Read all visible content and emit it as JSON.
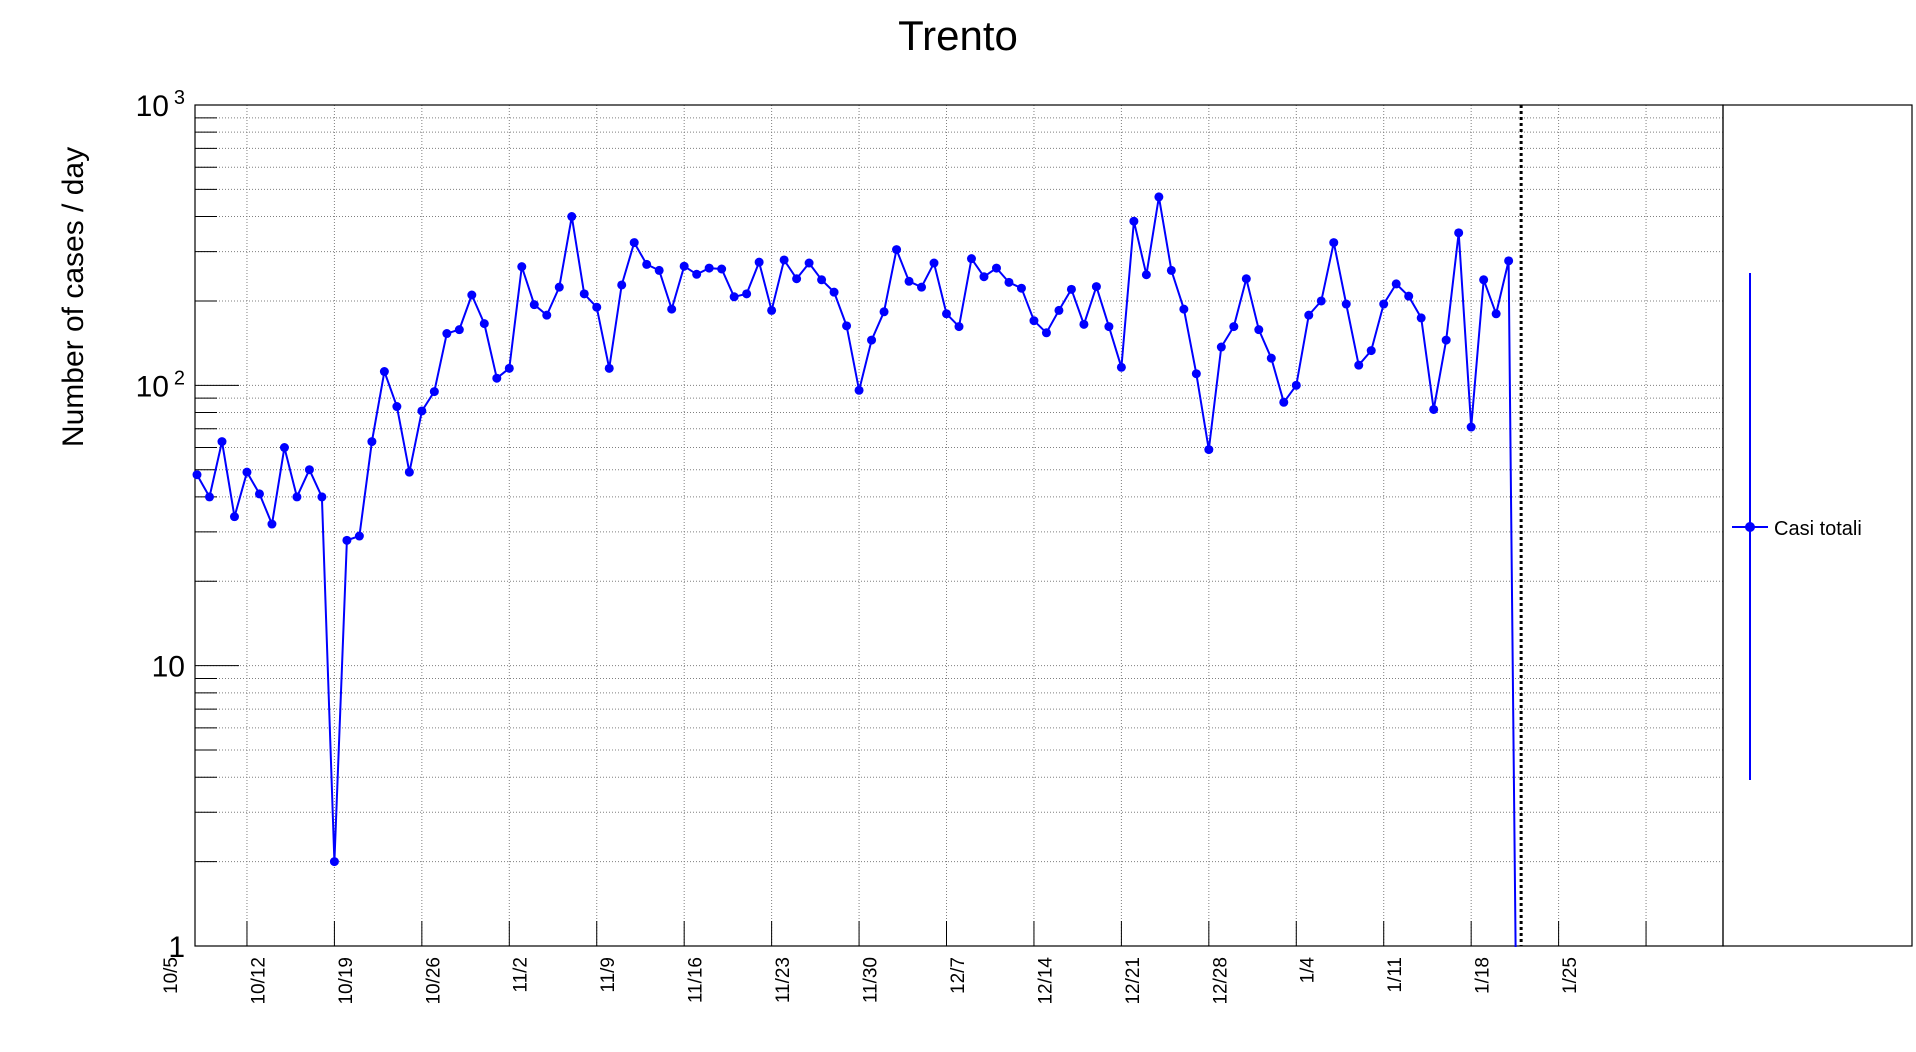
{
  "chart_data": {
    "type": "line",
    "title": "Trento",
    "xlabel": "",
    "ylabel": "Number of cases / day",
    "yscale": "log",
    "ylim": [
      1,
      1000
    ],
    "yticks": [
      {
        "value": 1,
        "label": "1",
        "exp": ""
      },
      {
        "value": 10,
        "label": "10",
        "exp": ""
      },
      {
        "value": 100,
        "label": "10",
        "exp": "2"
      },
      {
        "value": 1000,
        "label": "10",
        "exp": "3"
      }
    ],
    "xlim": [
      "2020-10-01",
      "2021-01-31"
    ],
    "xticks": [
      {
        "date": "2020-10-05",
        "label": "10/5"
      },
      {
        "date": "2020-10-12",
        "label": "10/12"
      },
      {
        "date": "2020-10-19",
        "label": "10/19"
      },
      {
        "date": "2020-10-26",
        "label": "10/26"
      },
      {
        "date": "2020-11-02",
        "label": "11/2"
      },
      {
        "date": "2020-11-09",
        "label": "11/9"
      },
      {
        "date": "2020-11-16",
        "label": "11/16"
      },
      {
        "date": "2020-11-23",
        "label": "11/23"
      },
      {
        "date": "2020-11-30",
        "label": "11/30"
      },
      {
        "date": "2020-12-07",
        "label": "12/7"
      },
      {
        "date": "2020-12-14",
        "label": "12/14"
      },
      {
        "date": "2020-12-21",
        "label": "12/21"
      },
      {
        "date": "2020-12-28",
        "label": "12/28"
      },
      {
        "date": "2021-01-04",
        "label": "1/4"
      },
      {
        "date": "2021-01-11",
        "label": "1/11"
      },
      {
        "date": "2021-01-18",
        "label": "1/18"
      },
      {
        "date": "2021-01-25",
        "label": "1/25"
      }
    ],
    "grid": true,
    "legend_position": "right",
    "vline_date": "2021-01-15",
    "series": [
      {
        "name": "Casi totali",
        "color": "#0000ff",
        "x": [
          "2020-10-01",
          "2020-10-02",
          "2020-10-03",
          "2020-10-04",
          "2020-10-05",
          "2020-10-06",
          "2020-10-07",
          "2020-10-08",
          "2020-10-09",
          "2020-10-10",
          "2020-10-11",
          "2020-10-12",
          "2020-10-13",
          "2020-10-14",
          "2020-10-15",
          "2020-10-16",
          "2020-10-17",
          "2020-10-18",
          "2020-10-19",
          "2020-10-20",
          "2020-10-21",
          "2020-10-22",
          "2020-10-23",
          "2020-10-24",
          "2020-10-25",
          "2020-10-26",
          "2020-10-27",
          "2020-10-28",
          "2020-10-29",
          "2020-10-30",
          "2020-10-31",
          "2020-11-01",
          "2020-11-02",
          "2020-11-03",
          "2020-11-04",
          "2020-11-05",
          "2020-11-06",
          "2020-11-07",
          "2020-11-08",
          "2020-11-09",
          "2020-11-10",
          "2020-11-11",
          "2020-11-12",
          "2020-11-13",
          "2020-11-14",
          "2020-11-15",
          "2020-11-16",
          "2020-11-17",
          "2020-11-18",
          "2020-11-19",
          "2020-11-20",
          "2020-11-21",
          "2020-11-22",
          "2020-11-23",
          "2020-11-24",
          "2020-11-25",
          "2020-11-26",
          "2020-11-27",
          "2020-11-28",
          "2020-11-29",
          "2020-11-30",
          "2020-12-01",
          "2020-12-02",
          "2020-12-03",
          "2020-12-04",
          "2020-12-05",
          "2020-12-06",
          "2020-12-07",
          "2020-12-08",
          "2020-12-09",
          "2020-12-10",
          "2020-12-11",
          "2020-12-12",
          "2020-12-13",
          "2020-12-14",
          "2020-12-15",
          "2020-12-16",
          "2020-12-17",
          "2020-12-18",
          "2020-12-19",
          "2020-12-20",
          "2020-12-21",
          "2020-12-22",
          "2020-12-23",
          "2020-12-24",
          "2020-12-25",
          "2020-12-26",
          "2020-12-27",
          "2020-12-28",
          "2020-12-29",
          "2020-12-30",
          "2020-12-31",
          "2021-01-01",
          "2021-01-02",
          "2021-01-03",
          "2021-01-04",
          "2021-01-05",
          "2021-01-06",
          "2021-01-07",
          "2021-01-08",
          "2021-01-09",
          "2021-01-10",
          "2021-01-11",
          "2021-01-12",
          "2021-01-13",
          "2021-01-14"
        ],
        "y": [
          48,
          40,
          63,
          34,
          49,
          41,
          32,
          60,
          40,
          50,
          40,
          2,
          28,
          29,
          63,
          112,
          84,
          49,
          81,
          95,
          153,
          158,
          210,
          166,
          106,
          115,
          265,
          194,
          178,
          224,
          400,
          212,
          190,
          115,
          228,
          323,
          270,
          257,
          187,
          266,
          249,
          262,
          260,
          207,
          212,
          275,
          185,
          280,
          240,
          273,
          238,
          215,
          163,
          96,
          145,
          183,
          305,
          235,
          224,
          273,
          180,
          162,
          283,
          244,
          262,
          233,
          222,
          170,
          154,
          185,
          220,
          165,
          225,
          162,
          116,
          385,
          248,
          470,
          257,
          187,
          110,
          59,
          137,
          162,
          240,
          158,
          125,
          87,
          100,
          178,
          200,
          323,
          195,
          118,
          133,
          195,
          230,
          208,
          174,
          82,
          145,
          350,
          71,
          238,
          180,
          278
        ]
      }
    ]
  }
}
